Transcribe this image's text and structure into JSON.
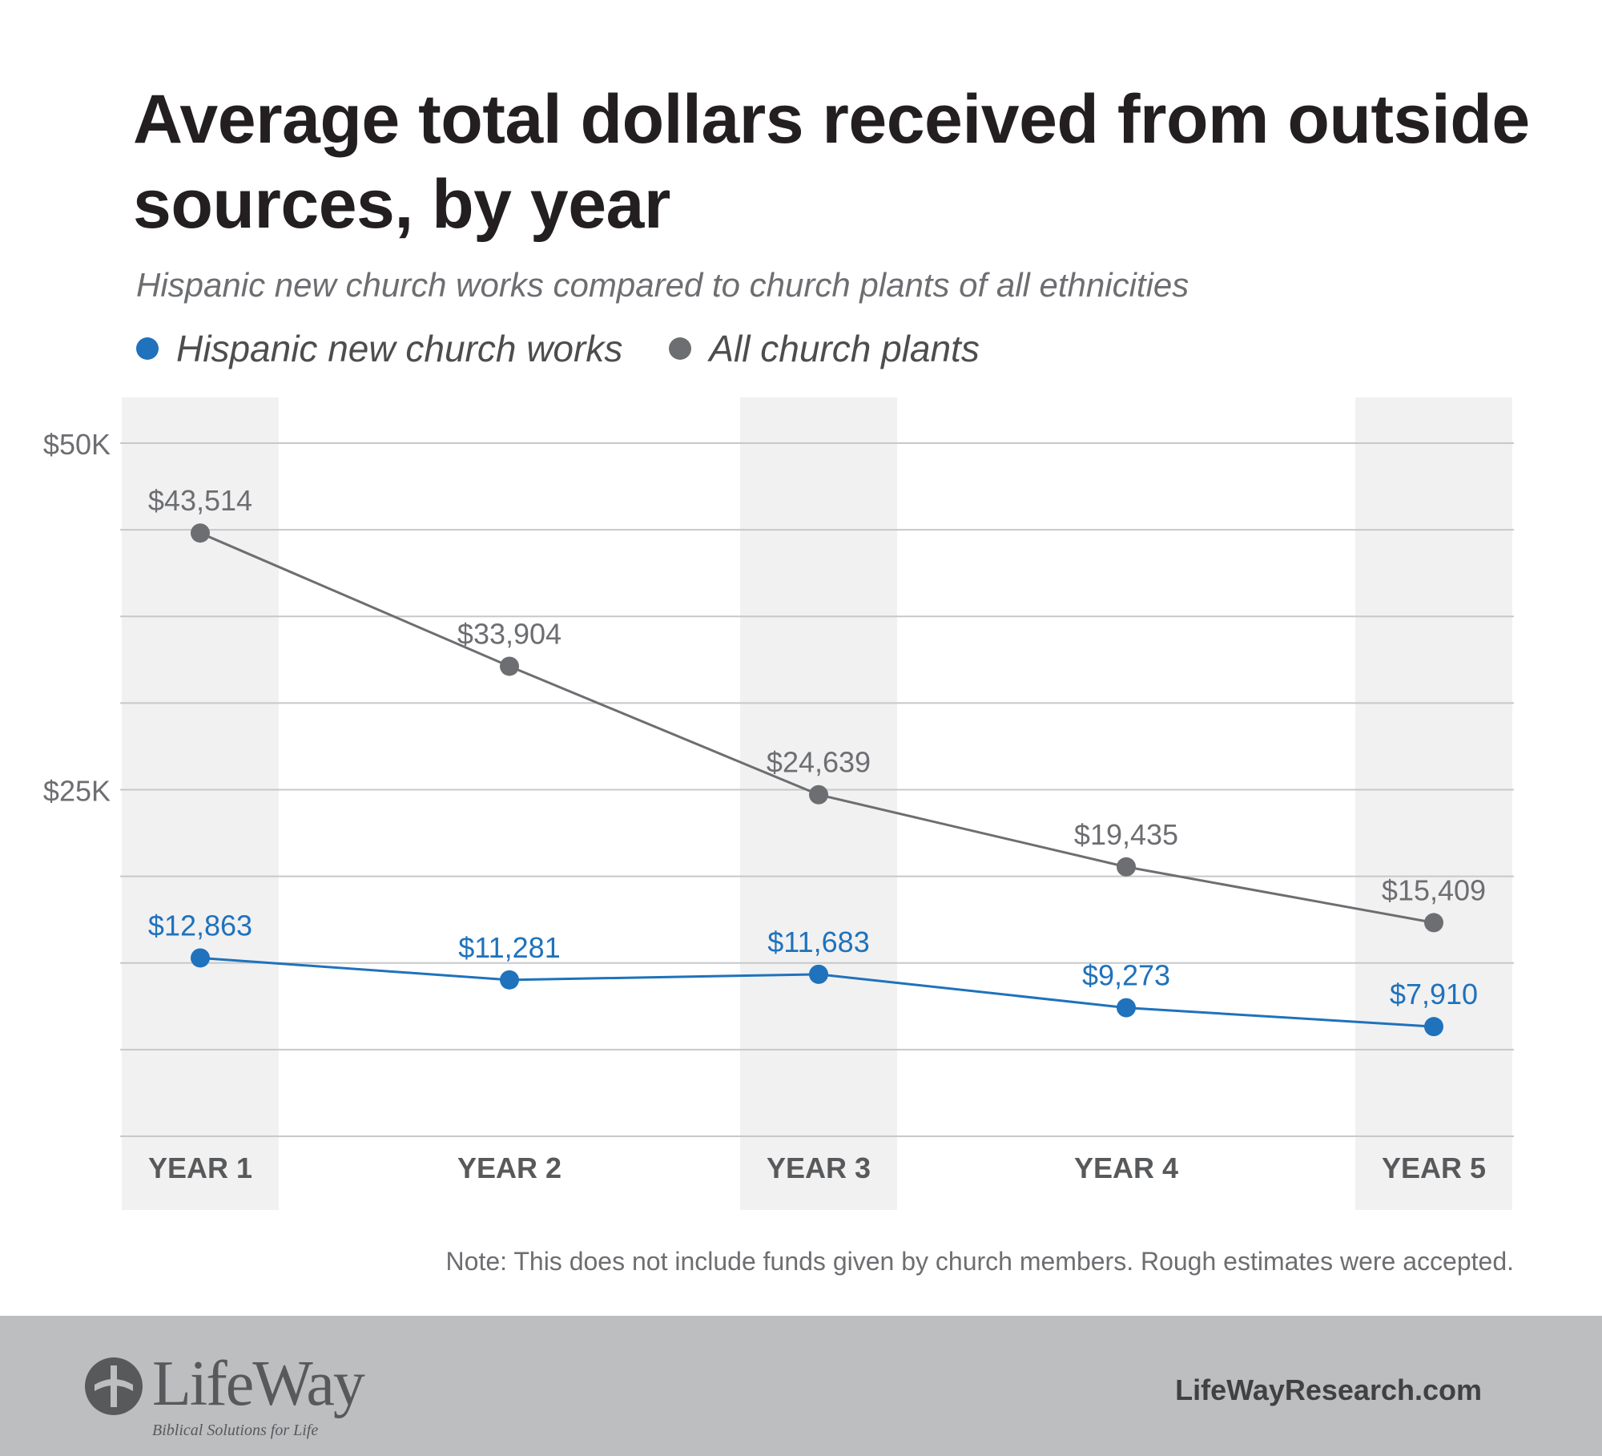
{
  "header": {
    "title": "Average total dollars received from outside sources, by year",
    "subtitle": "Hispanic new church works compared to church plants of all ethnicities"
  },
  "legend": {
    "hispanic_label": "Hispanic new church works",
    "all_label": "All church plants"
  },
  "colors": {
    "hispanic": "#1f72bb",
    "all": "#6d6e71",
    "band": "#f1f1f2",
    "grid": "#c7c8ca",
    "footer": "#bcbec0"
  },
  "chart_data": {
    "type": "line",
    "categories": [
      "YEAR 1",
      "YEAR 2",
      "YEAR 3",
      "YEAR 4",
      "YEAR 5"
    ],
    "series": [
      {
        "name": "Hispanic new church works",
        "values": [
          12863,
          11281,
          11683,
          9273,
          7910
        ],
        "labels": [
          "$12,863",
          "$11,281",
          "$11,683",
          "$9,273",
          "$7,910"
        ]
      },
      {
        "name": "All church plants",
        "values": [
          43514,
          33904,
          24639,
          19435,
          15409
        ],
        "labels": [
          "$43,514",
          "$33,904",
          "$24,639",
          "$19,435",
          "$15,409"
        ]
      }
    ],
    "y_ticks": [
      {
        "value": 50000,
        "label": "$50K"
      },
      {
        "value": 25000,
        "label": "$25K"
      }
    ],
    "ylim": [
      0,
      50000
    ],
    "grid": true
  },
  "note": "Note: This does not include funds given by church members. Rough estimates were accepted.",
  "footer": {
    "logo_text": "LifeWay",
    "tagline": "Biblical Solutions for Life",
    "website": "LifeWayResearch.com"
  }
}
